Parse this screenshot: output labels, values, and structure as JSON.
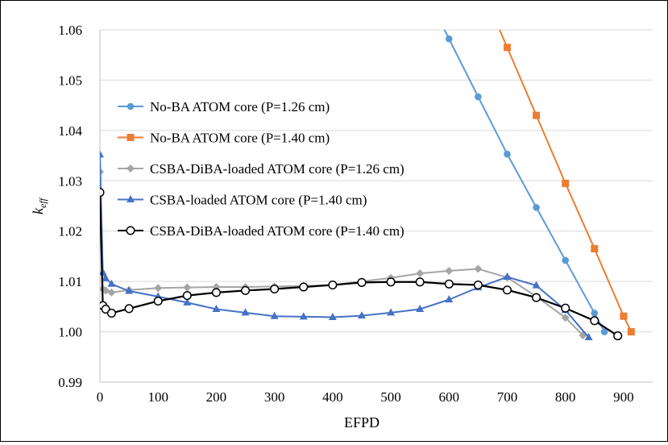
{
  "chart_data": {
    "type": "line",
    "title": "",
    "xlabel": "EFPD",
    "ylabel": "k_eff",
    "ylabel_main": "k",
    "ylabel_sub": "eff",
    "xlim": [
      0,
      950
    ],
    "ylim": [
      0.99,
      1.06
    ],
    "xticks": [
      0,
      100,
      200,
      300,
      400,
      500,
      600,
      700,
      800,
      900
    ],
    "xtick_labels": [
      "0",
      "100",
      "200",
      "300",
      "400",
      "500",
      "600",
      "700",
      "800",
      "900"
    ],
    "yticks": [
      0.99,
      1.0,
      1.01,
      1.02,
      1.03,
      1.04,
      1.05,
      1.06
    ],
    "ytick_labels": [
      "0.99",
      "1.00",
      "1.01",
      "1.02",
      "1.03",
      "1.04",
      "1.05",
      "1.06"
    ],
    "grid": "horizontal",
    "legend_position": "left",
    "series": [
      {
        "name": "No-BA ATOM core (P=1.26 cm)",
        "color": "#5b9bd5",
        "marker": "circle-filled",
        "x": [
          600,
          650,
          700,
          750,
          800,
          850,
          867
        ],
        "y": [
          1.0582,
          1.0467,
          1.0353,
          1.0247,
          1.0142,
          1.0037,
          1.0
        ]
      },
      {
        "name": "No-BA ATOM core (P=1.40 cm)",
        "color": "#ed7d31",
        "marker": "square",
        "x": [
          700,
          750,
          800,
          850,
          900,
          913
        ],
        "y": [
          1.0565,
          1.043,
          1.0295,
          1.0165,
          1.0031,
          1.0
        ]
      },
      {
        "name": "CSBA-DiBA-loaded ATOM core (P=1.26 cm)",
        "color": "#a5a5a5",
        "marker": "diamond",
        "x": [
          0,
          5,
          10,
          20,
          50,
          100,
          150,
          200,
          250,
          300,
          350,
          400,
          450,
          500,
          550,
          600,
          650,
          700,
          750,
          800,
          830
        ],
        "y": [
          1.0318,
          1.0085,
          1.0082,
          1.0078,
          1.0083,
          1.0087,
          1.0088,
          1.0089,
          1.0089,
          1.009,
          1.0091,
          1.0093,
          1.01,
          1.0107,
          1.0116,
          1.0121,
          1.0125,
          1.0108,
          1.007,
          1.0028,
          0.9993
        ]
      },
      {
        "name": "CSBA-loaded ATOM core (P=1.40 cm)",
        "color": "#4472c4",
        "marker": "triangle",
        "x": [
          0,
          5,
          10,
          20,
          50,
          100,
          150,
          200,
          250,
          300,
          350,
          400,
          450,
          500,
          550,
          600,
          650,
          700,
          750,
          800,
          840
        ],
        "y": [
          1.0352,
          1.0118,
          1.0106,
          1.0095,
          1.0081,
          1.007,
          1.0058,
          1.0045,
          1.0038,
          1.0031,
          1.003,
          1.0029,
          1.0032,
          1.0038,
          1.0045,
          1.0064,
          1.0088,
          1.0109,
          1.0092,
          1.0043,
          0.9989
        ]
      },
      {
        "name": "CSBA-DiBA-loaded ATOM core (P=1.40 cm)",
        "color": "#000000",
        "marker": "circle-open",
        "x": [
          0,
          5,
          10,
          20,
          50,
          100,
          150,
          200,
          250,
          300,
          350,
          400,
          450,
          500,
          550,
          600,
          650,
          700,
          750,
          800,
          850,
          890
        ],
        "y": [
          1.0277,
          1.0052,
          1.0045,
          1.0037,
          1.0046,
          1.0061,
          1.0072,
          1.0078,
          1.0082,
          1.0085,
          1.0089,
          1.0093,
          1.0098,
          1.0099,
          1.0099,
          1.0095,
          1.0093,
          1.0083,
          1.0068,
          1.0047,
          1.0022,
          0.9992
        ]
      }
    ]
  }
}
